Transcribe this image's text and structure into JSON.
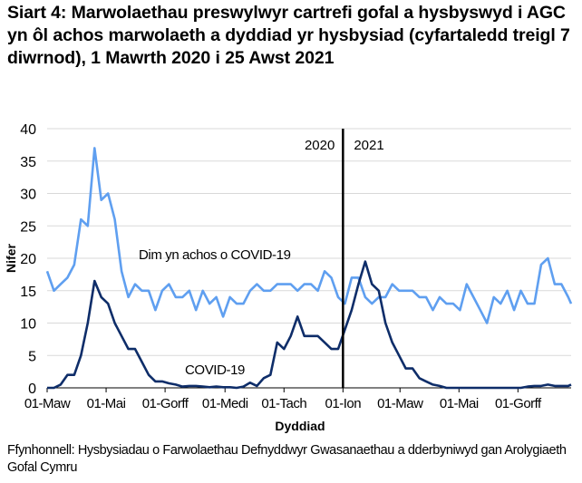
{
  "title": "Siart 4: Marwolaethau preswylwyr cartrefi gofal a hysbyswyd i AGC yn ôl achos marwolaeth a dyddiad yr hysbysiad (cyfartaledd treigl 7 diwrnod), 1 Mawrth 2020 i 25 Awst 2021",
  "source": "Ffynhonnell: Hysbysiadau o Farwolaethau Defnyddwyr Gwasanaethau a dderbyniwyd gan Arolygiaeth Gofal Cymru",
  "chart_data": {
    "type": "line",
    "title": "Siart 4: Marwolaethau preswylwyr cartrefi gofal a hysbyswyd i AGC yn ôl achos marwolaeth a dyddiad yr hysbysiad (cyfartaledd treigl 7 diwrnod), 1 Mawrth 2020 i 25 Awst 2021",
    "xlabel": "Dyddiad",
    "ylabel": "Nifer",
    "xlim": [
      "2020-03-01",
      "2021-08-25"
    ],
    "ylim": [
      0,
      40
    ],
    "yticks": [
      0,
      5,
      10,
      15,
      20,
      25,
      30,
      35,
      40
    ],
    "xticks": [
      {
        "date": "2020-03-01",
        "label": "01-Maw"
      },
      {
        "date": "2020-05-01",
        "label": "01-Mai"
      },
      {
        "date": "2020-07-01",
        "label": "01-Gorff"
      },
      {
        "date": "2020-09-01",
        "label": "01-Medi"
      },
      {
        "date": "2020-11-01",
        "label": "01-Tach"
      },
      {
        "date": "2021-01-01",
        "label": "01-Ion"
      },
      {
        "date": "2021-03-01",
        "label": "01-Maw"
      },
      {
        "date": "2021-05-01",
        "label": "01-Mai"
      },
      {
        "date": "2021-07-01",
        "label": "01-Gorff"
      }
    ],
    "grid": true,
    "divider": {
      "date": "2021-01-01",
      "left_label": "2020",
      "right_label": "2021"
    },
    "x": [
      "2020-03-01",
      "2020-03-08",
      "2020-03-15",
      "2020-03-22",
      "2020-03-29",
      "2020-04-05",
      "2020-04-12",
      "2020-04-19",
      "2020-04-26",
      "2020-05-03",
      "2020-05-10",
      "2020-05-17",
      "2020-05-24",
      "2020-05-31",
      "2020-06-07",
      "2020-06-14",
      "2020-06-21",
      "2020-06-28",
      "2020-07-05",
      "2020-07-12",
      "2020-07-19",
      "2020-07-26",
      "2020-08-02",
      "2020-08-09",
      "2020-08-16",
      "2020-08-23",
      "2020-08-30",
      "2020-09-06",
      "2020-09-13",
      "2020-09-20",
      "2020-09-27",
      "2020-10-04",
      "2020-10-11",
      "2020-10-18",
      "2020-10-25",
      "2020-11-01",
      "2020-11-08",
      "2020-11-15",
      "2020-11-22",
      "2020-11-29",
      "2020-12-06",
      "2020-12-13",
      "2020-12-20",
      "2020-12-27",
      "2021-01-03",
      "2021-01-10",
      "2021-01-17",
      "2021-01-24",
      "2021-01-31",
      "2021-02-07",
      "2021-02-14",
      "2021-02-21",
      "2021-02-28",
      "2021-03-07",
      "2021-03-14",
      "2021-03-21",
      "2021-03-28",
      "2021-04-04",
      "2021-04-11",
      "2021-04-18",
      "2021-04-25",
      "2021-05-02",
      "2021-05-09",
      "2021-05-16",
      "2021-05-23",
      "2021-05-30",
      "2021-06-06",
      "2021-06-13",
      "2021-06-20",
      "2021-06-27",
      "2021-07-04",
      "2021-07-11",
      "2021-07-18",
      "2021-07-25",
      "2021-08-01",
      "2021-08-08",
      "2021-08-15",
      "2021-08-22",
      "2021-08-25"
    ],
    "series": [
      {
        "name": "Dim yn achos o COVID-19",
        "color": "#5f9ff0",
        "values": [
          18,
          15,
          16,
          17,
          19,
          26,
          25,
          37,
          29,
          30,
          26,
          18,
          14,
          16,
          15,
          15,
          12,
          15,
          16,
          14,
          14,
          15,
          12,
          15,
          13,
          14,
          11,
          14,
          13,
          13,
          15,
          16,
          15,
          15,
          16,
          16,
          16,
          15,
          16,
          16,
          15,
          18,
          17,
          14,
          13,
          17,
          17,
          14,
          13,
          14,
          14,
          16,
          15,
          15,
          15,
          14,
          14,
          12,
          14,
          13,
          13,
          12,
          16,
          14,
          12,
          10,
          14,
          13,
          15,
          12,
          15,
          13,
          13,
          19,
          20,
          16,
          16,
          14,
          13
        ]
      },
      {
        "name": "COVID-19",
        "color": "#0e2d69",
        "values": [
          0,
          0,
          0.5,
          2,
          2,
          5,
          10,
          16.5,
          14,
          13,
          10,
          8,
          6,
          6,
          4,
          2,
          1,
          1,
          0.7,
          0.5,
          0.2,
          0.3,
          0.3,
          0.2,
          0.1,
          0.2,
          0.1,
          0.1,
          0,
          0.2,
          0.8,
          0.3,
          1.5,
          2,
          7,
          6,
          8,
          11,
          8,
          8,
          8,
          7,
          6,
          6,
          9,
          12,
          16,
          19.5,
          16,
          15,
          10,
          7,
          5,
          3,
          3,
          1.5,
          1,
          0.5,
          0.3,
          0,
          0,
          0,
          0,
          0,
          0,
          0,
          0,
          0,
          0,
          0,
          0,
          0.2,
          0.3,
          0.3,
          0.5,
          0.3,
          0.3,
          0.3,
          0.5
        ]
      }
    ]
  }
}
